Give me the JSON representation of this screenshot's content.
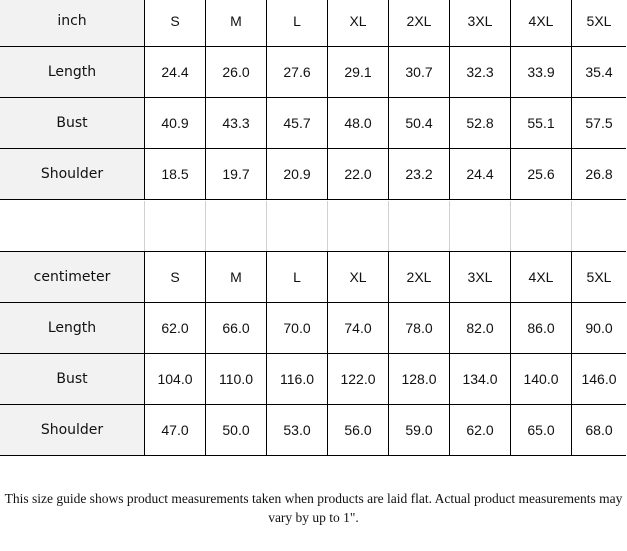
{
  "tables": [
    {
      "unit": "inch",
      "sizes": [
        "S",
        "M",
        "L",
        "XL",
        "2XL",
        "3XL",
        "4XL",
        "5XL"
      ],
      "rows": [
        {
          "label": "Length",
          "values": [
            "24.4",
            "26.0",
            "27.6",
            "29.1",
            "30.7",
            "32.3",
            "33.9",
            "35.4"
          ]
        },
        {
          "label": "Bust",
          "values": [
            "40.9",
            "43.3",
            "45.7",
            "48.0",
            "50.4",
            "52.8",
            "55.1",
            "57.5"
          ]
        },
        {
          "label": "Shoulder",
          "values": [
            "18.5",
            "19.7",
            "20.9",
            "22.0",
            "23.2",
            "24.4",
            "25.6",
            "26.8"
          ]
        }
      ]
    },
    {
      "unit": "centimeter",
      "sizes": [
        "S",
        "M",
        "L",
        "XL",
        "2XL",
        "3XL",
        "4XL",
        "5XL"
      ],
      "rows": [
        {
          "label": "Length",
          "values": [
            "62.0",
            "66.0",
            "70.0",
            "74.0",
            "78.0",
            "82.0",
            "86.0",
            "90.0"
          ]
        },
        {
          "label": "Bust",
          "values": [
            "104.0",
            "110.0",
            "116.0",
            "122.0",
            "128.0",
            "134.0",
            "140.0",
            "146.0"
          ]
        },
        {
          "label": "Shoulder",
          "values": [
            "47.0",
            "50.0",
            "53.0",
            "56.0",
            "59.0",
            "62.0",
            "65.0",
            "68.0"
          ]
        }
      ]
    }
  ],
  "note": "This size guide shows product measurements taken when products are laid flat. Actual product measurements may vary by up to 1\"."
}
